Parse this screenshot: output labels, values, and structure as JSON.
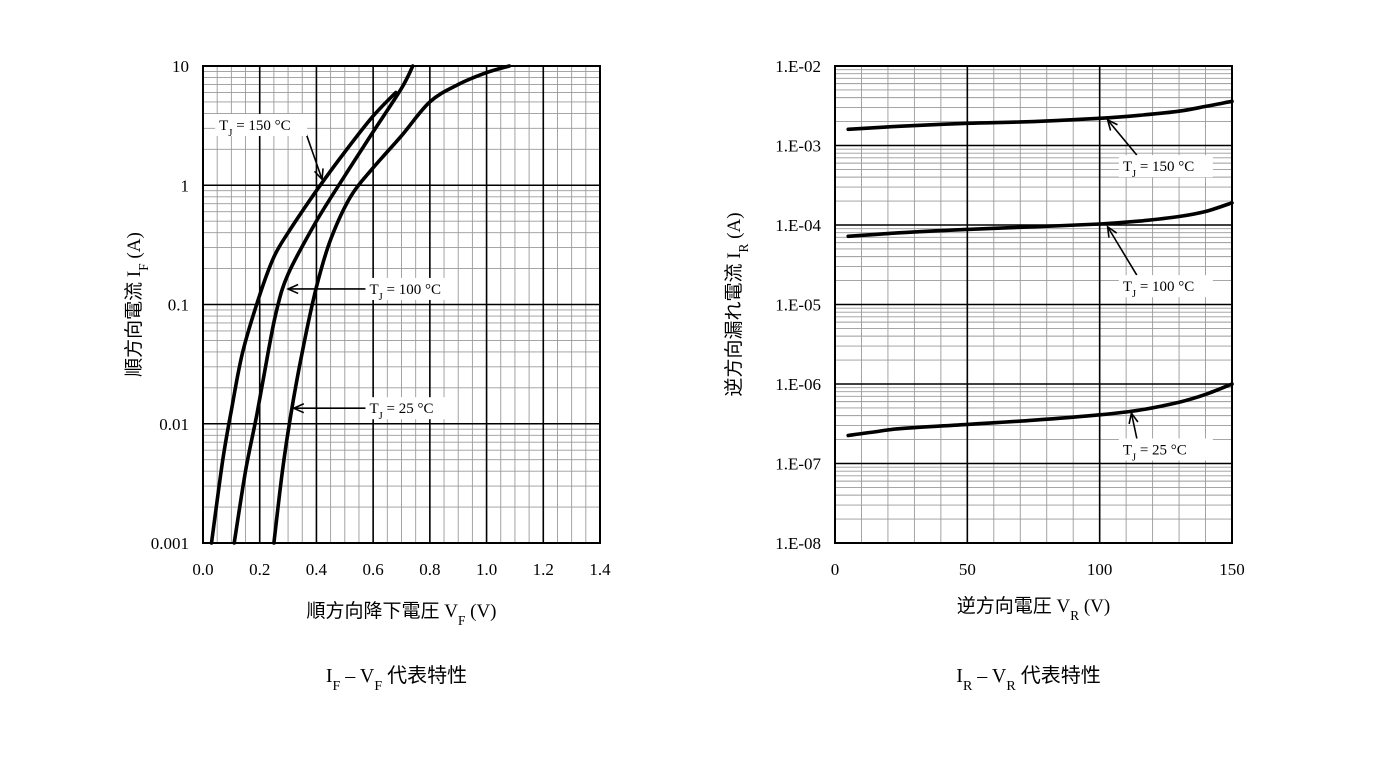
{
  "chart_data": [
    {
      "type": "line",
      "title": "I_F – V_F 代表特性",
      "title_parts": {
        "a": "I",
        "a_sub": "F",
        "dash": " – ",
        "b": "V",
        "b_sub": "F",
        "rest": " 代表特性"
      },
      "xlabel": "順方向降下電圧 V_F (V)",
      "xlabel_parts": {
        "main": "順方向降下電圧 ",
        "sym": "V",
        "sub": "F",
        "unit": " (V)"
      },
      "ylabel": "順方向電流 I_F (A)",
      "ylabel_parts": {
        "main": "順方向電流 ",
        "sym": "I",
        "sub": "F",
        "unit": " (A)"
      },
      "xlim": [
        0.0,
        1.4
      ],
      "ylim": [
        0.001,
        10
      ],
      "yscale": "log",
      "grid": true,
      "x_ticks": [
        "0.0",
        "0.2",
        "0.4",
        "0.6",
        "0.8",
        "1.0",
        "1.2",
        "1.4"
      ],
      "x_tick_values": [
        0.0,
        0.2,
        0.4,
        0.6,
        0.8,
        1.0,
        1.2,
        1.4
      ],
      "y_ticks": [
        "0.001",
        "0.01",
        "0.1",
        "1",
        "10"
      ],
      "y_tick_values": [
        0.001,
        0.01,
        0.1,
        1,
        10
      ],
      "series": [
        {
          "name": "T_J = 150 °C",
          "label_parts": {
            "sym": "T",
            "sub": "J",
            "rest": " = 150 °C"
          },
          "x": [
            0.03,
            0.07,
            0.1,
            0.14,
            0.2,
            0.25,
            0.3,
            0.4,
            0.5,
            0.6,
            0.68
          ],
          "y": [
            0.001,
            0.005,
            0.013,
            0.04,
            0.12,
            0.25,
            0.4,
            0.9,
            1.9,
            3.8,
            6.0
          ]
        },
        {
          "name": "T_J = 100 °C",
          "label_parts": {
            "sym": "T",
            "sub": "J",
            "rest": " = 100 °C"
          },
          "x": [
            0.11,
            0.15,
            0.19,
            0.23,
            0.26,
            0.3,
            0.4,
            0.5,
            0.6,
            0.7,
            0.74
          ],
          "y": [
            0.001,
            0.004,
            0.012,
            0.04,
            0.09,
            0.18,
            0.5,
            1.2,
            2.8,
            6.5,
            10
          ]
        },
        {
          "name": "T_J = 25 °C",
          "label_parts": {
            "sym": "T",
            "sub": "J",
            "rest": " = 25 °C"
          },
          "x": [
            0.25,
            0.28,
            0.31,
            0.35,
            0.4,
            0.45,
            0.52,
            0.6,
            0.7,
            0.8,
            0.9,
            1.0,
            1.08
          ],
          "y": [
            0.001,
            0.004,
            0.012,
            0.04,
            0.14,
            0.35,
            0.8,
            1.4,
            2.6,
            5.0,
            7.0,
            8.8,
            10
          ]
        }
      ],
      "annotations": [
        {
          "series": "T_J = 150 °C",
          "text_x": 0.05,
          "text_y": 3.2,
          "arrow_x": 0.42,
          "arrow_y": 1.12
        },
        {
          "series": "T_J = 100 °C",
          "text_x": 0.58,
          "text_y": 0.135,
          "arrow_x": 0.3,
          "arrow_y": 0.135
        },
        {
          "series": "T_J = 25 °C",
          "text_x": 0.58,
          "text_y": 0.0135,
          "arrow_x": 0.32,
          "arrow_y": 0.0135
        }
      ]
    },
    {
      "type": "line",
      "title": "I_R – V_R 代表特性",
      "title_parts": {
        "a": "I",
        "a_sub": "R",
        "dash": " – ",
        "b": "V",
        "b_sub": "R",
        "rest": " 代表特性"
      },
      "xlabel": "逆方向電圧 V_R (V)",
      "xlabel_parts": {
        "main": "逆方向電圧 ",
        "sym": "V",
        "sub": "R",
        "unit": " (V)"
      },
      "ylabel": "逆方向漏れ電流 I_R (A)",
      "ylabel_parts": {
        "main": "逆方向漏れ電流 ",
        "sym": "I",
        "sub": "R",
        "unit": " (A)"
      },
      "xlim": [
        0,
        150
      ],
      "ylim": [
        1e-08,
        0.01
      ],
      "yscale": "log",
      "grid": true,
      "x_ticks": [
        "0",
        "50",
        "100",
        "150"
      ],
      "x_tick_values": [
        0,
        50,
        100,
        150
      ],
      "y_ticks": [
        "1.E-08",
        "1.E-07",
        "1.E-06",
        "1.E-05",
        "1.E-04",
        "1.E-03",
        "1.E-02"
      ],
      "y_tick_values": [
        1e-08,
        1e-07,
        1e-06,
        1e-05,
        0.0001,
        0.001,
        0.01
      ],
      "series": [
        {
          "name": "T_J = 150 °C",
          "label_parts": {
            "sym": "T",
            "sub": "J",
            "rest": " = 150 °C"
          },
          "x": [
            5,
            25,
            50,
            75,
            100,
            115,
            130,
            140,
            150
          ],
          "y": [
            0.0016,
            0.00175,
            0.0019,
            0.002,
            0.0022,
            0.0024,
            0.0027,
            0.0031,
            0.0036
          ]
        },
        {
          "name": "T_J = 100 °C",
          "label_parts": {
            "sym": "T",
            "sub": "J",
            "rest": " = 100 °C"
          },
          "x": [
            5,
            25,
            50,
            75,
            100,
            115,
            130,
            140,
            150
          ],
          "y": [
            7.2e-05,
            8e-05,
            8.8e-05,
            9.5e-05,
            0.000103,
            0.000112,
            0.000128,
            0.000148,
            0.00019
          ]
        },
        {
          "name": "T_J = 25 °C",
          "label_parts": {
            "sym": "T",
            "sub": "J",
            "rest": " = 25 °C"
          },
          "x": [
            5,
            15,
            25,
            50,
            75,
            100,
            115,
            130,
            140,
            150
          ],
          "y": [
            2.25e-07,
            2.5e-07,
            2.75e-07,
            3.1e-07,
            3.5e-07,
            4.1e-07,
            4.7e-07,
            5.9e-07,
            7.4e-07,
            1e-06
          ]
        }
      ],
      "annotations": [
        {
          "series": "T_J = 150 °C",
          "text_x": 108,
          "text_y": 0.00055,
          "arrow_x": 103,
          "arrow_y": 0.0021
        },
        {
          "series": "T_J = 100 °C",
          "text_x": 108,
          "text_y": 1.7e-05,
          "arrow_x": 103,
          "arrow_y": 9.5e-05
        },
        {
          "series": "T_J = 25 °C",
          "text_x": 108,
          "text_y": 1.5e-07,
          "arrow_x": 112,
          "arrow_y": 4.3e-07
        }
      ]
    }
  ]
}
